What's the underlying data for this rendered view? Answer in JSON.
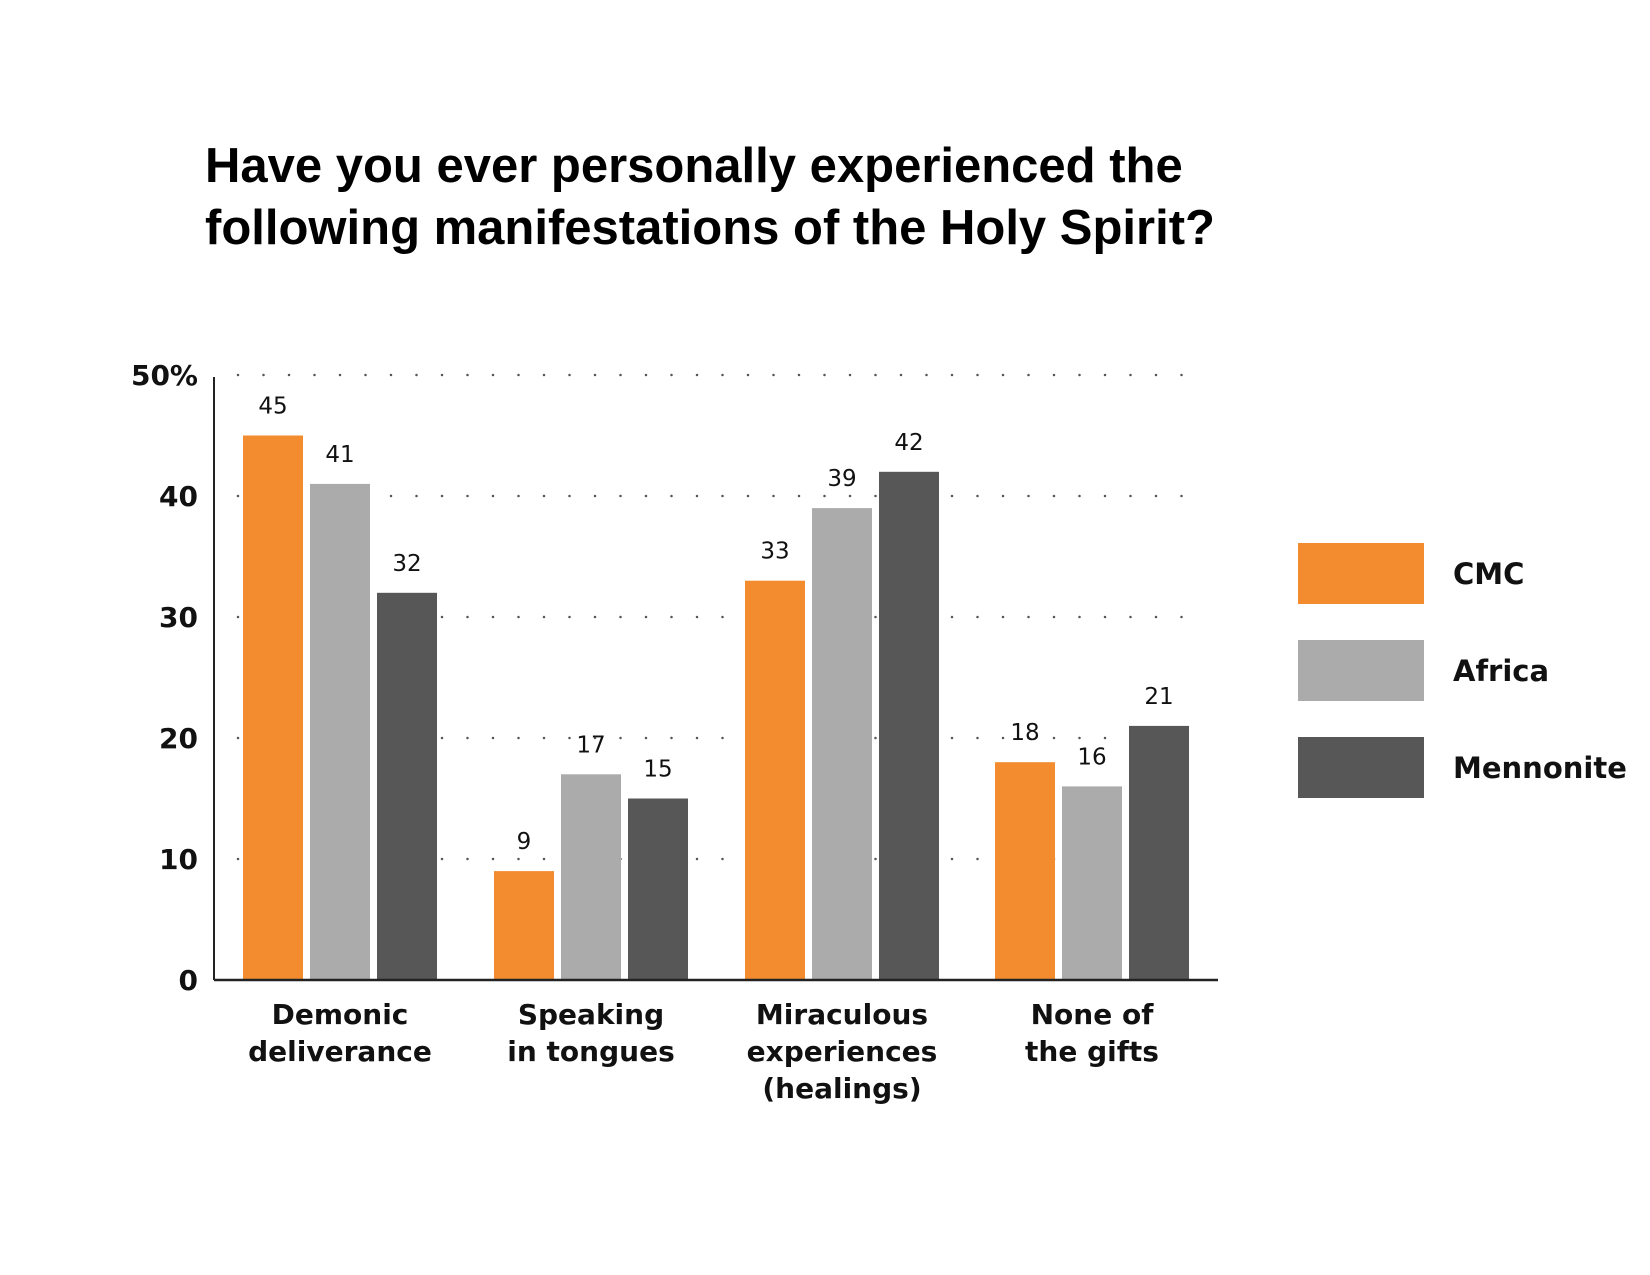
{
  "title_lines": [
    "Have you ever personally experienced the",
    "following manifestations of the Holy Spirit?"
  ],
  "chart_data": {
    "type": "bar",
    "title": "Have you ever personally experienced the following manifestations of the Holy Spirit?",
    "categories": [
      [
        "Demonic",
        "deliverance"
      ],
      [
        "Speaking",
        "in tongues"
      ],
      [
        "Miraculous",
        "experiences",
        "(healings)"
      ],
      [
        "None of",
        "the gifts"
      ]
    ],
    "series": [
      {
        "name": "CMC",
        "color": "#F28C2E",
        "values": [
          45,
          9,
          33,
          18
        ]
      },
      {
        "name": "Africa",
        "color": "#ABABAB",
        "values": [
          41,
          17,
          39,
          16
        ]
      },
      {
        "name": "Mennonite",
        "color": "#575757",
        "values": [
          32,
          15,
          42,
          21
        ]
      }
    ],
    "ylim": [
      0,
      50
    ],
    "y_ticks": [
      "0",
      "10",
      "20",
      "30",
      "40",
      "50%"
    ],
    "grid": true,
    "legend_position": "right"
  }
}
